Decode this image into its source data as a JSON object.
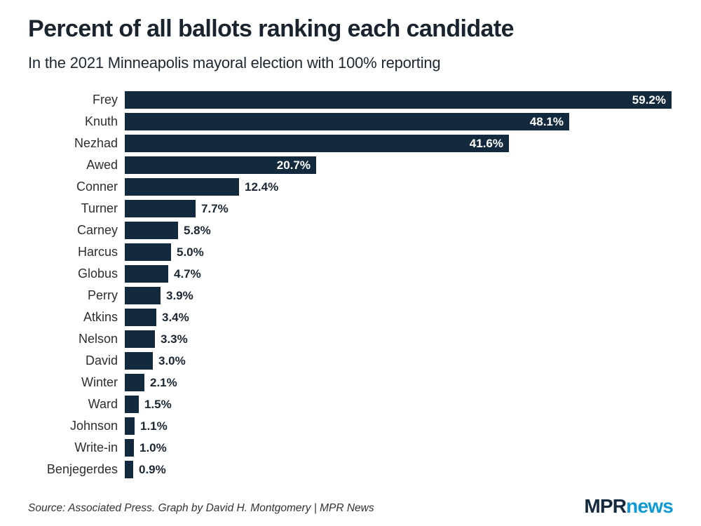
{
  "header": {
    "title": "Percent of all ballots ranking each candidate",
    "subtitle": "In the 2021 Minneapolis mayoral election with 100% reporting"
  },
  "footer": {
    "source": "Source: Associated Press. Graph by David H. Montgomery | MPR News"
  },
  "logo": {
    "mpr": "MPR",
    "news": "news"
  },
  "colors": {
    "bar": "#12293e",
    "value_label_inside": "#ffffff",
    "value_label_outside": "#1b2733",
    "logo_mpr": "#12293e",
    "logo_news": "#0d9ad6"
  },
  "chart_data": {
    "type": "bar",
    "orientation": "horizontal",
    "title": "Percent of all ballots ranking each candidate",
    "subtitle": "In the 2021 Minneapolis mayoral election with 100% reporting",
    "xlabel": "",
    "ylabel": "",
    "xlim": [
      0,
      60
    ],
    "grid": false,
    "legend": "none",
    "value_suffix": "%",
    "inside_label_threshold": 20,
    "categories": [
      "Frey",
      "Knuth",
      "Nezhad",
      "Awed",
      "Conner",
      "Turner",
      "Carney",
      "Harcus",
      "Globus",
      "Perry",
      "Atkins",
      "Nelson",
      "David",
      "Winter",
      "Ward",
      "Johnson",
      "Write-in",
      "Benjegerdes"
    ],
    "values": [
      59.2,
      48.1,
      41.6,
      20.7,
      12.4,
      7.7,
      5.8,
      5.0,
      4.7,
      3.9,
      3.4,
      3.3,
      3.0,
      2.1,
      1.5,
      1.1,
      1.0,
      0.9
    ]
  }
}
